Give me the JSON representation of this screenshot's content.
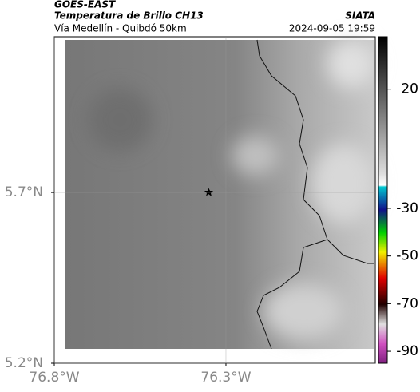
{
  "header": {
    "source": "GOES-EAST",
    "title": "Temperatura de Brillo CH13",
    "org": "SIATA",
    "subtitle": "Vía Medellín - Quibdó 50km",
    "timestamp": "2024-09-05 19:59"
  },
  "map": {
    "xlim": [
      -76.8,
      -75.865
    ],
    "ylim": [
      5.2,
      6.156
    ],
    "xticks": [
      {
        "value": -76.8,
        "label": "76.8°W"
      },
      {
        "value": -76.3,
        "label": "76.3°W"
      }
    ],
    "yticks": [
      {
        "value": 5.7,
        "label": "5.7°N"
      },
      {
        "value": 5.2,
        "label": "5.2°N"
      }
    ]
  },
  "colorbar": {
    "clim": [
      -95,
      42
    ],
    "ticks": [
      20,
      -30,
      -50,
      -70,
      -90
    ]
  }
}
